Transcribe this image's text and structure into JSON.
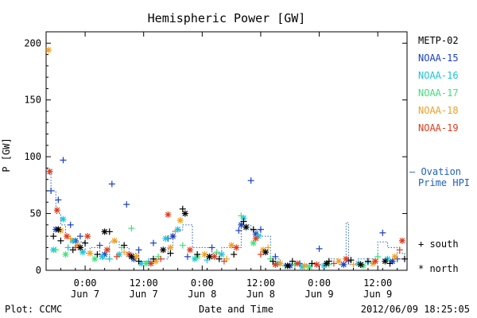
{
  "chart_data": {
    "type": "scatter",
    "title": "Hemispheric Power [GW]",
    "ylabel": "P [GW]",
    "xlabel": "Date and Time",
    "ylim": [
      0,
      210
    ],
    "yticks": [
      0,
      50,
      100,
      150,
      200
    ],
    "xlim": [
      "2012-06-06T16:00",
      "2012-06-09T18:00"
    ],
    "xticks": [
      {
        "t": "2012-06-07T00:00",
        "time": "0:00",
        "day": "Jun 7"
      },
      {
        "t": "2012-06-07T12:00",
        "time": "12:00",
        "day": "Jun 7"
      },
      {
        "t": "2012-06-08T00:00",
        "time": "0:00",
        "day": "Jun 8"
      },
      {
        "t": "2012-06-08T12:00",
        "time": "12:00",
        "day": "Jun 8"
      },
      {
        "t": "2012-06-09T00:00",
        "time": "0:00",
        "day": "Jun 9"
      },
      {
        "t": "2012-06-09T12:00",
        "time": "12:00",
        "day": "Jun 9"
      }
    ],
    "legend": {
      "placement": "right",
      "series_labels": [
        {
          "name": "METP-02",
          "color": "#000000"
        },
        {
          "name": "NOAA-15",
          "color": "#1a3fc0"
        },
        {
          "name": "NOAA-16",
          "color": "#1ac3e0"
        },
        {
          "name": "NOAA-17",
          "color": "#3fe07a"
        },
        {
          "name": "NOAA-18",
          "color": "#f0a020"
        },
        {
          "name": "NOAA-19",
          "color": "#e03a1a"
        }
      ],
      "ovation_line1": "– Ovation",
      "ovation_line2": "Prime HPI",
      "ovation_color": "#2060c0",
      "south_label": "+ south",
      "north_label": "* north"
    },
    "footer": {
      "left": "Plot: CCMC",
      "right": "2012/06/09 18:25:05"
    },
    "series": [
      {
        "name": "NOAA-15",
        "color": "#1a3fc0",
        "hemisphere": "south",
        "points": [
          [
            "2012-06-06T17:00",
            70
          ],
          [
            "2012-06-06T18:30",
            62
          ],
          [
            "2012-06-06T19:30",
            97
          ],
          [
            "2012-06-06T21:00",
            40
          ],
          [
            "2012-06-06T23:00",
            30
          ],
          [
            "2012-06-07T03:00",
            22
          ],
          [
            "2012-06-07T05:30",
            76
          ],
          [
            "2012-06-07T08:30",
            58
          ],
          [
            "2012-06-07T11:00",
            18
          ],
          [
            "2012-06-07T14:00",
            24
          ],
          [
            "2012-06-07T17:00",
            28
          ],
          [
            "2012-06-07T21:00",
            12
          ],
          [
            "2012-06-08T02:00",
            20
          ],
          [
            "2012-06-08T07:30",
            35
          ],
          [
            "2012-06-08T10:00",
            79
          ],
          [
            "2012-06-08T12:00",
            36
          ],
          [
            "2012-06-08T15:00",
            12
          ],
          [
            "2012-06-08T20:00",
            6
          ],
          [
            "2012-06-09T00:00",
            19
          ],
          [
            "2012-06-09T06:00",
            8
          ],
          [
            "2012-06-09T13:00",
            33
          ],
          [
            "2012-06-09T16:00",
            10
          ]
        ]
      },
      {
        "name": "NOAA-15",
        "color": "#1a3fc0",
        "hemisphere": "north",
        "points": [
          [
            "2012-06-06T18:00",
            36
          ],
          [
            "2012-06-06T22:00",
            26
          ],
          [
            "2012-06-07T04:00",
            14
          ],
          [
            "2012-06-07T10:00",
            10
          ],
          [
            "2012-06-07T18:00",
            30
          ],
          [
            "2012-06-08T08:00",
            40
          ],
          [
            "2012-06-08T11:00",
            32
          ],
          [
            "2012-06-08T18:00",
            4
          ],
          [
            "2012-06-09T05:00",
            5
          ],
          [
            "2012-06-09T15:00",
            8
          ]
        ]
      },
      {
        "name": "NOAA-16",
        "color": "#1ac3e0",
        "hemisphere": "north",
        "points": [
          [
            "2012-06-06T17:30",
            18
          ],
          [
            "2012-06-06T19:30",
            45
          ],
          [
            "2012-06-06T21:30",
            26
          ],
          [
            "2012-06-06T23:30",
            16
          ],
          [
            "2012-06-07T03:30",
            12
          ],
          [
            "2012-06-07T07:00",
            14
          ],
          [
            "2012-06-07T11:30",
            6
          ],
          [
            "2012-06-07T16:30",
            28
          ],
          [
            "2012-06-07T19:00",
            36
          ],
          [
            "2012-06-07T22:30",
            10
          ],
          [
            "2012-06-08T04:00",
            14
          ],
          [
            "2012-06-08T08:30",
            46
          ],
          [
            "2012-06-08T11:30",
            30
          ],
          [
            "2012-06-08T15:30",
            6
          ],
          [
            "2012-06-08T20:30",
            3
          ],
          [
            "2012-06-09T01:00",
            4
          ],
          [
            "2012-06-09T08:00",
            6
          ],
          [
            "2012-06-09T14:00",
            10
          ]
        ]
      },
      {
        "name": "NOAA-16",
        "color": "#1ac3e0",
        "hemisphere": "south",
        "points": [
          [
            "2012-06-06T20:30",
            20
          ],
          [
            "2012-06-07T05:00",
            10
          ],
          [
            "2012-06-07T13:00",
            8
          ],
          [
            "2012-06-08T01:00",
            9
          ],
          [
            "2012-06-08T09:00",
            38
          ],
          [
            "2012-06-08T17:00",
            4
          ],
          [
            "2012-06-09T10:00",
            7
          ]
        ]
      },
      {
        "name": "NOAA-17",
        "color": "#3fe07a",
        "hemisphere": "south",
        "points": [
          [
            "2012-06-06T18:00",
            18
          ],
          [
            "2012-06-07T07:30",
            20
          ],
          [
            "2012-06-07T09:30",
            37
          ],
          [
            "2012-06-07T15:00",
            12
          ],
          [
            "2012-06-07T20:00",
            22
          ],
          [
            "2012-06-08T03:00",
            16
          ],
          [
            "2012-06-08T08:00",
            48
          ],
          [
            "2012-06-08T14:00",
            10
          ],
          [
            "2012-06-08T19:00",
            5
          ],
          [
            "2012-06-09T02:00",
            5
          ],
          [
            "2012-06-09T12:00",
            12
          ]
        ]
      },
      {
        "name": "NOAA-17",
        "color": "#3fe07a",
        "hemisphere": "north",
        "points": [
          [
            "2012-06-06T20:00",
            14
          ],
          [
            "2012-06-07T02:00",
            10
          ],
          [
            "2012-06-07T12:30",
            6
          ],
          [
            "2012-06-07T23:00",
            12
          ],
          [
            "2012-06-08T10:30",
            24
          ],
          [
            "2012-06-08T22:00",
            3
          ],
          [
            "2012-06-09T09:00",
            4
          ]
        ]
      },
      {
        "name": "NOAA-18",
        "color": "#f0a020",
        "hemisphere": "north",
        "points": [
          [
            "2012-06-06T16:30",
            194
          ],
          [
            "2012-06-06T19:00",
            35
          ],
          [
            "2012-06-06T22:30",
            22
          ],
          [
            "2012-06-07T01:00",
            15
          ],
          [
            "2012-06-07T06:00",
            26
          ],
          [
            "2012-06-07T10:30",
            12
          ],
          [
            "2012-06-07T14:30",
            8
          ],
          [
            "2012-06-07T17:30",
            20
          ],
          [
            "2012-06-07T19:30",
            44
          ],
          [
            "2012-06-08T00:30",
            14
          ],
          [
            "2012-06-08T06:00",
            22
          ],
          [
            "2012-06-08T12:30",
            18
          ],
          [
            "2012-06-08T16:00",
            6
          ],
          [
            "2012-06-08T21:00",
            4
          ],
          [
            "2012-06-09T04:00",
            8
          ],
          [
            "2012-06-09T11:00",
            6
          ],
          [
            "2012-06-09T15:30",
            12
          ]
        ]
      },
      {
        "name": "NOAA-18",
        "color": "#f0a020",
        "hemisphere": "south",
        "points": [
          [
            "2012-06-06T21:00",
            28
          ],
          [
            "2012-06-07T08:00",
            16
          ],
          [
            "2012-06-07T18:30",
            34
          ],
          [
            "2012-06-08T05:00",
            10
          ],
          [
            "2012-06-08T13:30",
            20
          ],
          [
            "2012-06-09T07:00",
            5
          ]
        ]
      },
      {
        "name": "NOAA-19",
        "color": "#e03a1a",
        "hemisphere": "north",
        "points": [
          [
            "2012-06-06T16:45",
            87
          ],
          [
            "2012-06-06T18:15",
            53
          ],
          [
            "2012-06-06T20:15",
            30
          ],
          [
            "2012-06-07T00:30",
            30
          ],
          [
            "2012-06-07T04:30",
            18
          ],
          [
            "2012-06-07T09:00",
            14
          ],
          [
            "2012-06-07T13:30",
            6
          ],
          [
            "2012-06-07T17:00",
            49
          ],
          [
            "2012-06-07T21:30",
            18
          ],
          [
            "2012-06-08T02:30",
            12
          ],
          [
            "2012-06-08T07:00",
            20
          ],
          [
            "2012-06-08T11:00",
            28
          ],
          [
            "2012-06-08T15:00",
            5
          ],
          [
            "2012-06-08T19:30",
            6
          ],
          [
            "2012-06-08T23:30",
            5
          ],
          [
            "2012-06-09T05:30",
            10
          ],
          [
            "2012-06-09T11:30",
            8
          ],
          [
            "2012-06-09T17:00",
            26
          ]
        ]
      },
      {
        "name": "NOAA-19",
        "color": "#e03a1a",
        "hemisphere": "south",
        "points": [
          [
            "2012-06-06T22:00",
            20
          ],
          [
            "2012-06-07T06:30",
            12
          ],
          [
            "2012-06-07T15:30",
            10
          ],
          [
            "2012-06-08T04:30",
            8
          ],
          [
            "2012-06-08T12:00",
            14
          ],
          [
            "2012-06-09T03:00",
            6
          ],
          [
            "2012-06-09T16:30",
            18
          ]
        ]
      },
      {
        "name": "METP-02",
        "color": "#000000",
        "hemisphere": "south",
        "points": [
          [
            "2012-06-06T17:30",
            30
          ],
          [
            "2012-06-06T19:00",
            26
          ],
          [
            "2012-06-06T21:30",
            18
          ],
          [
            "2012-06-07T00:00",
            24
          ],
          [
            "2012-06-07T02:30",
            14
          ],
          [
            "2012-06-07T05:00",
            34
          ],
          [
            "2012-06-07T08:00",
            22
          ],
          [
            "2012-06-07T11:00",
            8
          ],
          [
            "2012-06-07T14:00",
            10
          ],
          [
            "2012-06-07T17:30",
            15
          ],
          [
            "2012-06-07T20:00",
            54
          ],
          [
            "2012-06-07T23:00",
            14
          ],
          [
            "2012-06-08T03:30",
            10
          ],
          [
            "2012-06-08T06:30",
            14
          ],
          [
            "2012-06-08T08:30",
            43
          ],
          [
            "2012-06-08T10:30",
            36
          ],
          [
            "2012-06-08T14:30",
            8
          ],
          [
            "2012-06-08T18:30",
            8
          ],
          [
            "2012-06-08T22:30",
            6
          ],
          [
            "2012-06-09T02:00",
            8
          ],
          [
            "2012-06-09T06:30",
            9
          ],
          [
            "2012-06-09T10:00",
            8
          ],
          [
            "2012-06-09T14:30",
            6
          ],
          [
            "2012-06-09T17:30",
            10
          ]
        ]
      },
      {
        "name": "METP-02",
        "color": "#000000",
        "hemisphere": "north",
        "points": [
          [
            "2012-06-06T18:30",
            36
          ],
          [
            "2012-06-06T23:00",
            20
          ],
          [
            "2012-06-07T04:00",
            34
          ],
          [
            "2012-06-07T09:30",
            12
          ],
          [
            "2012-06-07T16:00",
            18
          ],
          [
            "2012-06-07T20:30",
            50
          ],
          [
            "2012-06-08T01:30",
            12
          ],
          [
            "2012-06-08T09:00",
            38
          ],
          [
            "2012-06-08T13:00",
            16
          ],
          [
            "2012-06-08T17:30",
            4
          ],
          [
            "2012-06-09T01:30",
            6
          ],
          [
            "2012-06-09T08:30",
            5
          ],
          [
            "2012-06-09T13:30",
            8
          ]
        ]
      }
    ],
    "ovation_hpi": {
      "color": "#2060c0",
      "points": [
        [
          "2012-06-06T16:30",
          85
        ],
        [
          "2012-06-06T17:00",
          70
        ],
        [
          "2012-06-06T18:00",
          50
        ],
        [
          "2012-06-06T19:00",
          40
        ],
        [
          "2012-06-06T20:00",
          30
        ],
        [
          "2012-06-06T21:00",
          25
        ],
        [
          "2012-06-06T22:00",
          25
        ],
        [
          "2012-06-07T00:00",
          15
        ],
        [
          "2012-06-07T01:00",
          20
        ],
        [
          "2012-06-07T03:00",
          10
        ],
        [
          "2012-06-07T05:00",
          25
        ],
        [
          "2012-06-07T07:00",
          20
        ],
        [
          "2012-06-07T09:00",
          15
        ],
        [
          "2012-06-07T11:00",
          8
        ],
        [
          "2012-06-07T13:00",
          10
        ],
        [
          "2012-06-07T15:00",
          10
        ],
        [
          "2012-06-07T17:00",
          20
        ],
        [
          "2012-06-07T18:00",
          35
        ],
        [
          "2012-06-07T20:00",
          40
        ],
        [
          "2012-06-07T22:00",
          20
        ],
        [
          "2012-06-08T00:00",
          20
        ],
        [
          "2012-06-08T02:00",
          15
        ],
        [
          "2012-06-08T04:00",
          20
        ],
        [
          "2012-06-08T06:00",
          20
        ],
        [
          "2012-06-08T08:00",
          40
        ],
        [
          "2012-06-08T10:00",
          35
        ],
        [
          "2012-06-08T12:00",
          30
        ],
        [
          "2012-06-08T14:00",
          10
        ],
        [
          "2012-06-08T16:00",
          5
        ],
        [
          "2012-06-08T18:00",
          5
        ],
        [
          "2012-06-08T20:00",
          5
        ],
        [
          "2012-06-08T22:00",
          5
        ],
        [
          "2012-06-09T00:00",
          5
        ],
        [
          "2012-06-09T02:00",
          10
        ],
        [
          "2012-06-09T04:00",
          5
        ],
        [
          "2012-06-09T05:30",
          42
        ],
        [
          "2012-06-09T06:00",
          5
        ],
        [
          "2012-06-09T08:00",
          10
        ],
        [
          "2012-06-09T10:00",
          10
        ],
        [
          "2012-06-09T12:00",
          25
        ],
        [
          "2012-06-09T14:00",
          20
        ],
        [
          "2012-06-09T16:00",
          15
        ],
        [
          "2012-06-09T17:30",
          10
        ]
      ]
    }
  }
}
